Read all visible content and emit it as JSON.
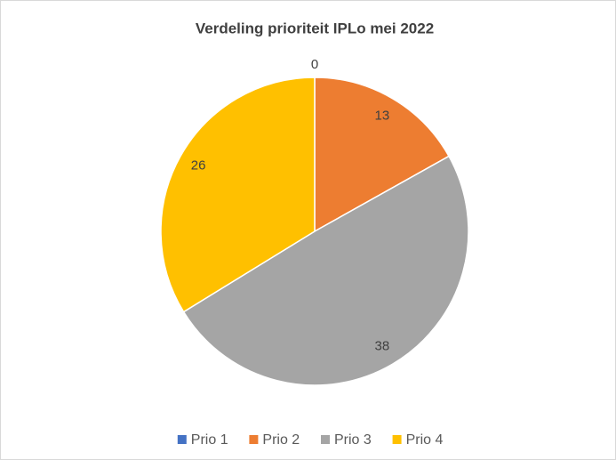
{
  "chart_data": {
    "type": "pie",
    "title": "Verdeling prioriteit IPLo mei 2022",
    "categories": [
      "Prio 1",
      "Prio 2",
      "Prio 3",
      "Prio 4"
    ],
    "values": [
      0,
      13,
      38,
      26
    ],
    "colors": [
      "#4472c4",
      "#ed7d31",
      "#a5a5a5",
      "#ffc000"
    ],
    "legend": "bottom"
  }
}
